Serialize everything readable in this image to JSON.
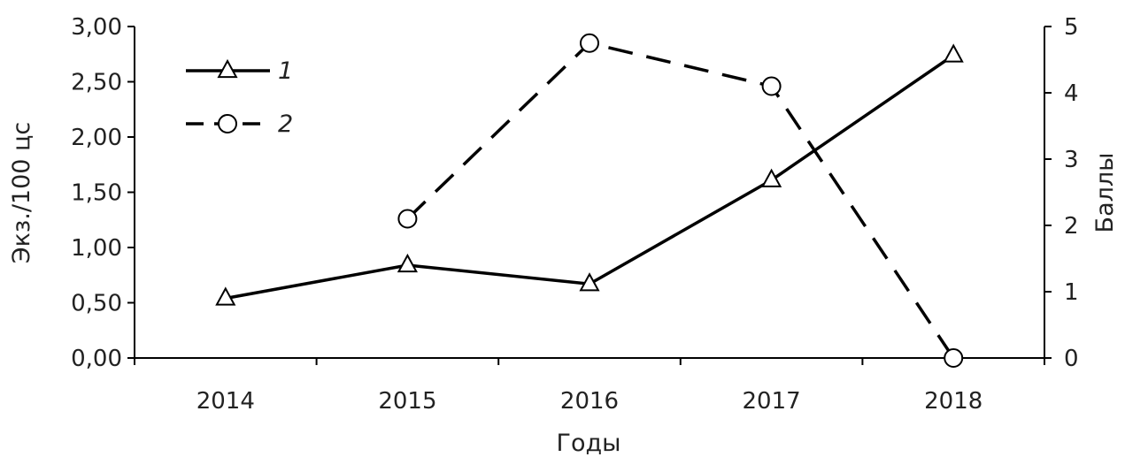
{
  "chart_data": {
    "type": "line",
    "categories": [
      "2014",
      "2015",
      "2016",
      "2017",
      "2018"
    ],
    "xlabel": "Годы",
    "ylabel_left": "Экз./100 цс",
    "ylabel_right": "Баллы",
    "ylim_left": [
      0,
      3
    ],
    "ylim_right": [
      0,
      5
    ],
    "yticks_left": [
      "0,00",
      "0,50",
      "1,00",
      "1,50",
      "2,00",
      "2,50",
      "3,00"
    ],
    "yticks_right": [
      "0",
      "1",
      "2",
      "3",
      "4",
      "5"
    ],
    "grid": false,
    "legend_position": "top-left",
    "series": [
      {
        "name": "1",
        "axis": "left",
        "marker": "triangle",
        "line_style": "solid",
        "values": [
          0.54,
          0.84,
          0.67,
          1.61,
          2.74
        ]
      },
      {
        "name": "2",
        "axis": "right",
        "marker": "circle",
        "line_style": "dashed",
        "values": [
          null,
          2.1,
          4.75,
          4.1,
          0
        ]
      }
    ],
    "colors": {
      "line": "#000000",
      "marker_fill": "#ffffff",
      "text": "#222222"
    }
  }
}
